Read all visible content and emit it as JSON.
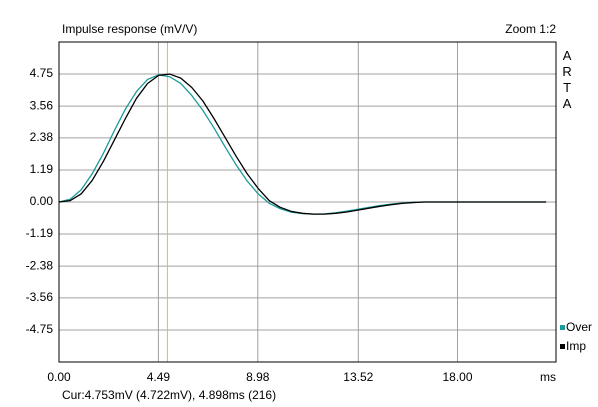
{
  "chart_data": {
    "type": "line",
    "title": "Impulse response (mV/V)",
    "zoom": "Zoom 1:2",
    "brand": "ARTA",
    "x_unit": "ms",
    "cursor_text": "Cur:4.753mV (4.722mV), 4.898ms (216)",
    "cursor_x": 4.898,
    "cursor_color": "#e8c020",
    "x": [
      0,
      0.5,
      1,
      1.5,
      2,
      2.5,
      3,
      3.5,
      4,
      4.5,
      5,
      5.5,
      6,
      6.5,
      7,
      7.5,
      8,
      8.5,
      9,
      9.5,
      10,
      10.5,
      11,
      11.5,
      12,
      12.5,
      13,
      13.5,
      14,
      14.5,
      15,
      15.5,
      16,
      16.5,
      17,
      18,
      22
    ],
    "series": [
      {
        "name": "Over",
        "color": "#1a9a9a",
        "values": [
          0,
          0.1,
          0.45,
          1.05,
          1.8,
          2.65,
          3.45,
          4.1,
          4.55,
          4.72,
          4.65,
          4.4,
          3.95,
          3.4,
          2.75,
          2.05,
          1.38,
          0.78,
          0.3,
          -0.05,
          -0.25,
          -0.38,
          -0.43,
          -0.45,
          -0.44,
          -0.4,
          -0.34,
          -0.27,
          -0.2,
          -0.13,
          -0.08,
          -0.04,
          -0.01,
          0,
          0,
          0,
          0
        ]
      },
      {
        "name": "Imp",
        "color": "#000000",
        "values": [
          0,
          0.05,
          0.3,
          0.8,
          1.5,
          2.3,
          3.1,
          3.85,
          4.4,
          4.7,
          4.75,
          4.6,
          4.25,
          3.75,
          3.1,
          2.4,
          1.7,
          1.05,
          0.5,
          0.05,
          -0.2,
          -0.35,
          -0.42,
          -0.45,
          -0.45,
          -0.42,
          -0.37,
          -0.3,
          -0.23,
          -0.16,
          -0.1,
          -0.05,
          -0.02,
          0,
          0,
          0,
          0
        ]
      }
    ],
    "xlim": [
      0,
      22.45
    ],
    "xticks": [
      {
        "value": 0,
        "label": "0.00"
      },
      4.49,
      8.98,
      13.52,
      {
        "value": 18,
        "label": "18.00"
      }
    ],
    "ylim": [
      -5.94,
      5.94
    ],
    "yticks": [
      4.75,
      3.56,
      2.38,
      1.19,
      {
        "value": 0,
        "label": "0.00"
      },
      -1.19,
      -2.38,
      -3.56,
      -4.75
    ],
    "grid": true
  }
}
